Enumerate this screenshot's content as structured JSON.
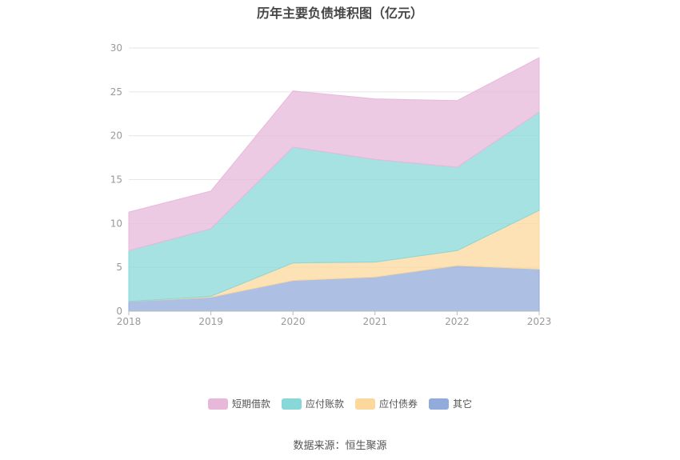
{
  "chart_data": {
    "type": "area",
    "stacked": true,
    "title": "历年主要负债堆积图（亿元）",
    "x": [
      "2018",
      "2019",
      "2020",
      "2021",
      "2022",
      "2023"
    ],
    "yticks": [
      "0",
      "5",
      "10",
      "15",
      "20",
      "25",
      "30"
    ],
    "ylim": [
      0,
      30
    ],
    "grid": true,
    "legend_position": "bottom",
    "series": [
      {
        "name": "其它",
        "color": "#91abdb",
        "values": [
          1.1,
          1.6,
          3.5,
          3.9,
          5.2,
          4.8
        ]
      },
      {
        "name": "应付债券",
        "color": "#fcd89c",
        "values": [
          0.0,
          0.1,
          2.0,
          1.7,
          1.7,
          6.7
        ]
      },
      {
        "name": "应付账款",
        "color": "#88d8d8",
        "values": [
          5.8,
          7.7,
          13.2,
          11.7,
          9.5,
          11.2
        ]
      },
      {
        "name": "短期借款",
        "color": "#e7b8da",
        "values": [
          4.4,
          4.3,
          6.4,
          6.9,
          7.6,
          6.2
        ]
      }
    ],
    "legend_order": [
      "短期借款",
      "应付账款",
      "应付债券",
      "其它"
    ]
  },
  "source_note": "数据来源：恒生聚源"
}
